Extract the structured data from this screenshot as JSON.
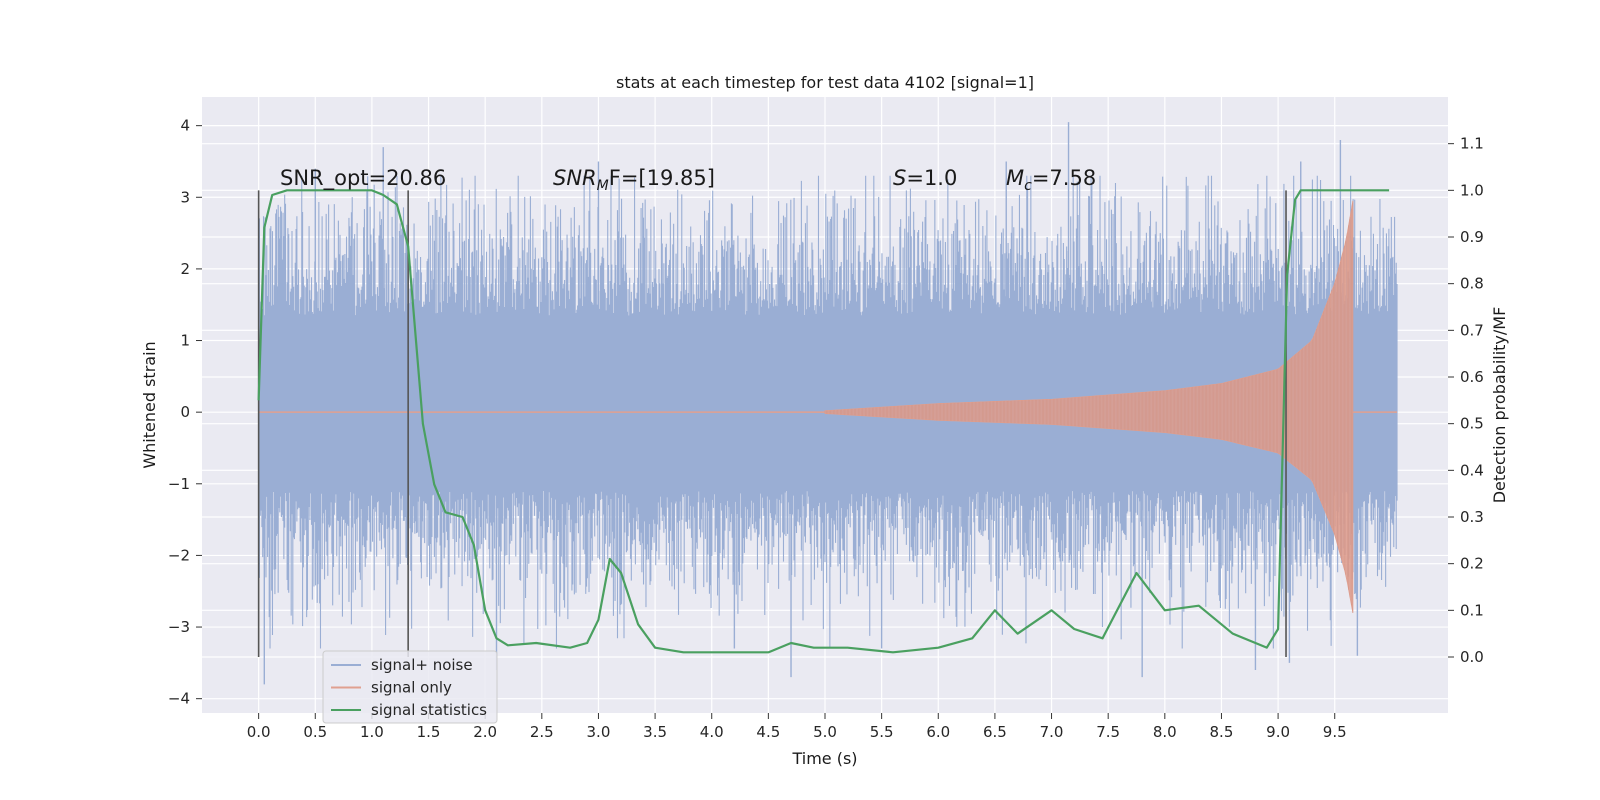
{
  "chart_data": {
    "type": "line",
    "title": "stats at each timestep for test data 4102 [signal=1]",
    "xlabel": "Time (s)",
    "ylabel": "Whitened strain",
    "y2label": "Detection probability/MF",
    "xlim": [
      -0.5,
      10.5
    ],
    "ylim": [
      -4.2,
      4.4
    ],
    "y2lim": [
      -0.12,
      1.2
    ],
    "x_ticks": [
      "0.0",
      "0.5",
      "1.0",
      "1.5",
      "2.0",
      "2.5",
      "3.0",
      "3.5",
      "4.0",
      "4.5",
      "5.0",
      "5.5",
      "6.0",
      "6.5",
      "7.0",
      "7.5",
      "8.0",
      "8.5",
      "9.0",
      "9.5"
    ],
    "y_ticks": [
      "4",
      "3",
      "2",
      "1",
      "0",
      "−1",
      "−2",
      "−3",
      "−4"
    ],
    "y2_ticks": [
      "1.1",
      "1.0",
      "0.9",
      "0.8",
      "0.7",
      "0.6",
      "0.5",
      "0.4",
      "0.3",
      "0.2",
      "0.1",
      "0.0"
    ],
    "grid": true,
    "legend_position": "lower-left",
    "annotations": {
      "snr_opt": "SNR_opt=20.86",
      "snr_mf_main": "SNR",
      "snr_mf_sub": "M",
      "snr_mf_rest": "F=[19.85]",
      "s_italic": "S",
      "s_rest": "=1.0",
      "mc_main": "M",
      "mc_sub": "c",
      "mc_rest": "=7.58"
    },
    "vertical_markers_s": [
      0.0,
      1.32,
      9.07
    ],
    "series": [
      {
        "name": "signal+ noise",
        "color": "#9aaed4",
        "axis": "left",
        "envelope": {
          "x_range": [
            0.0,
            10.05
          ],
          "dense_band": [
            -1.1,
            1.35
          ],
          "typical_range": [
            -2.3,
            2.6
          ],
          "extremes": [
            {
              "x": 0.05,
              "y": -3.8
            },
            {
              "x": 0.5,
              "y": 3.4
            },
            {
              "x": 1.1,
              "y": 3.7
            },
            {
              "x": 2.1,
              "y": -3.6
            },
            {
              "x": 3.0,
              "y": 3.5
            },
            {
              "x": 4.2,
              "y": -3.3
            },
            {
              "x": 4.7,
              "y": -3.7
            },
            {
              "x": 5.5,
              "y": -3.3
            },
            {
              "x": 6.6,
              "y": 3.5
            },
            {
              "x": 7.15,
              "y": 4.05
            },
            {
              "x": 7.8,
              "y": -3.7
            },
            {
              "x": 8.8,
              "y": -3.6
            },
            {
              "x": 9.1,
              "y": -3.5
            },
            {
              "x": 9.2,
              "y": 3.5
            },
            {
              "x": 9.55,
              "y": 3.8
            },
            {
              "x": 9.7,
              "y": -3.4
            }
          ]
        }
      },
      {
        "name": "signal only",
        "color": "#e0a090",
        "axis": "left",
        "chirp": {
          "start_s": 5.0,
          "peak_s": 9.66,
          "end_s": 10.05,
          "amplitude_points": [
            {
              "x": 5.0,
              "y": 0.02
            },
            {
              "x": 6.0,
              "y": 0.12
            },
            {
              "x": 7.0,
              "y": 0.18
            },
            {
              "x": 8.0,
              "y": 0.3
            },
            {
              "x": 8.5,
              "y": 0.4
            },
            {
              "x": 9.0,
              "y": 0.6
            },
            {
              "x": 9.3,
              "y": 1.0
            },
            {
              "x": 9.5,
              "y": 1.8
            },
            {
              "x": 9.6,
              "y": 2.4
            },
            {
              "x": 9.66,
              "y": 2.95
            }
          ]
        }
      },
      {
        "name": "signal statistics",
        "color": "#4aa060",
        "axis": "right",
        "points": [
          [
            0.0,
            0.55
          ],
          [
            0.05,
            0.92
          ],
          [
            0.12,
            0.99
          ],
          [
            0.25,
            1.0
          ],
          [
            0.5,
            1.0
          ],
          [
            0.75,
            1.0
          ],
          [
            1.0,
            1.0
          ],
          [
            1.1,
            0.99
          ],
          [
            1.22,
            0.97
          ],
          [
            1.32,
            0.88
          ],
          [
            1.45,
            0.5
          ],
          [
            1.55,
            0.37
          ],
          [
            1.65,
            0.31
          ],
          [
            1.8,
            0.3
          ],
          [
            1.9,
            0.24
          ],
          [
            2.0,
            0.1
          ],
          [
            2.1,
            0.04
          ],
          [
            2.2,
            0.025
          ],
          [
            2.45,
            0.03
          ],
          [
            2.75,
            0.02
          ],
          [
            2.9,
            0.03
          ],
          [
            3.0,
            0.08
          ],
          [
            3.1,
            0.21
          ],
          [
            3.2,
            0.18
          ],
          [
            3.35,
            0.07
          ],
          [
            3.5,
            0.02
          ],
          [
            3.75,
            0.01
          ],
          [
            4.0,
            0.01
          ],
          [
            4.5,
            0.01
          ],
          [
            4.7,
            0.03
          ],
          [
            4.9,
            0.02
          ],
          [
            5.2,
            0.02
          ],
          [
            5.6,
            0.01
          ],
          [
            6.0,
            0.02
          ],
          [
            6.3,
            0.04
          ],
          [
            6.5,
            0.1
          ],
          [
            6.7,
            0.05
          ],
          [
            7.0,
            0.1
          ],
          [
            7.2,
            0.06
          ],
          [
            7.45,
            0.04
          ],
          [
            7.75,
            0.18
          ],
          [
            8.0,
            0.1
          ],
          [
            8.3,
            0.11
          ],
          [
            8.6,
            0.05
          ],
          [
            8.9,
            0.02
          ],
          [
            9.0,
            0.06
          ],
          [
            9.08,
            0.82
          ],
          [
            9.15,
            0.98
          ],
          [
            9.2,
            1.0
          ],
          [
            9.5,
            1.0
          ],
          [
            9.98,
            1.0
          ]
        ]
      }
    ]
  }
}
